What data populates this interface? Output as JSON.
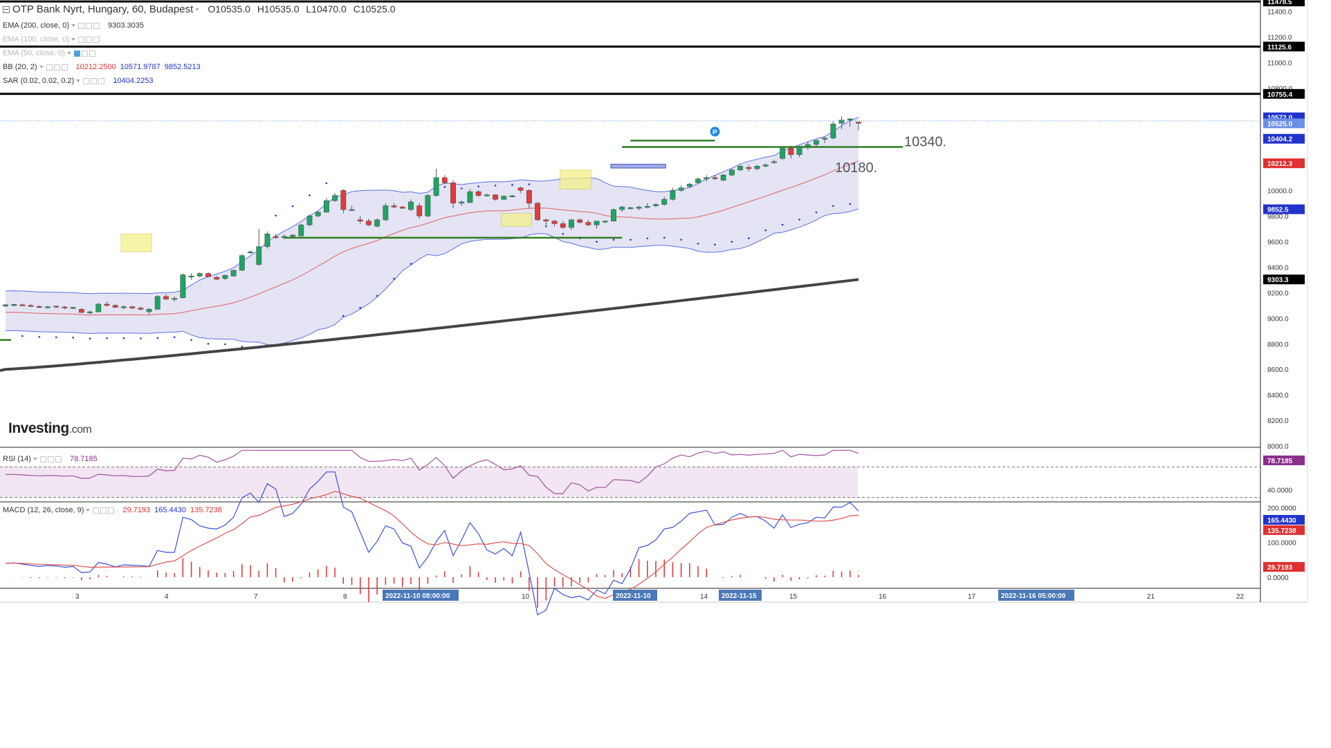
{
  "header": {
    "symbol": "OTP Bank Nyrt, Hungary, 60, Budapest",
    "ohlc": {
      "open": "O10535.0",
      "high": "H10535.0",
      "low": "L10470.0",
      "close": "C10525.0"
    }
  },
  "indicators": [
    {
      "label": "EMA (200, close, 0)",
      "values": [
        "9303.3035"
      ],
      "colors": [
        "#333333"
      ],
      "dim": false
    },
    {
      "label": "EMA (100, close, 0)",
      "values": [],
      "colors": [],
      "dim": true
    },
    {
      "label": "EMA (50, close, 0)",
      "values": [],
      "colors": [],
      "dim": true
    },
    {
      "label": "BB (20, 2)",
      "values": [
        "10212.2500",
        "10571.9787",
        "9852.5213"
      ],
      "colors": [
        "#e03030",
        "#2233cc",
        "#2233cc"
      ],
      "dim": false
    },
    {
      "label": "SAR (0.02, 0.02, 0.2)",
      "values": [
        "10404.2253"
      ],
      "colors": [
        "#2233cc"
      ],
      "dim": false
    }
  ],
  "rsi": {
    "label": "RSI (14)",
    "value": "78.7185",
    "color": "#8b2f8b"
  },
  "macd": {
    "label": "MACD (12, 26, close, 9)",
    "values": [
      "29.7193",
      "165.4430",
      "135.7238"
    ],
    "colors": [
      "#e03030",
      "#2233cc",
      "#e03030"
    ]
  },
  "logo": {
    "main": "Investing",
    "suffix": ".com"
  },
  "price_axis": {
    "ticks": [
      "11400.0",
      "11200.0",
      "11000.0",
      "10800.0",
      "10000.0",
      "9800.0",
      "9600.0",
      "9400.0",
      "9200.0",
      "9000.0",
      "8800.0",
      "8600.0",
      "8400.0",
      "8200.0",
      "8000.0"
    ],
    "tick_values": [
      11400,
      11200,
      11000,
      10800,
      10000,
      9800,
      9600,
      9400,
      9200,
      9000,
      8800,
      8600,
      8400,
      8200,
      8000
    ],
    "labels": [
      {
        "text": "11478.5",
        "value": 11478.5,
        "bg": "#000000",
        "fg": "#ffffff"
      },
      {
        "text": "11125.6",
        "value": 11125.6,
        "bg": "#000000",
        "fg": "#ffffff"
      },
      {
        "text": "10755.4",
        "value": 10755.4,
        "bg": "#000000",
        "fg": "#ffffff"
      },
      {
        "text": "10572.0",
        "value": 10572.0,
        "bg": "#2233cc",
        "fg": "#ffffff"
      },
      {
        "text": "10525.0",
        "value": 10525.0,
        "bg": "#6a8fe8",
        "fg": "#ffffff"
      },
      {
        "text": "10404.2",
        "value": 10404.2,
        "bg": "#2233cc",
        "fg": "#ffffff"
      },
      {
        "text": "10212.3",
        "value": 10212.3,
        "bg": "#e03030",
        "fg": "#ffffff"
      },
      {
        "text": "9852.5",
        "value": 9852.5,
        "bg": "#2233cc",
        "fg": "#ffffff"
      },
      {
        "text": "9303.3",
        "value": 9303.3,
        "bg": "#000000",
        "fg": "#ffffff"
      }
    ]
  },
  "rsi_axis": {
    "ticks": [
      "40.0000"
    ],
    "labels": [
      {
        "text": "78.7185",
        "bg": "#8b2f8b",
        "fg": "#ffffff"
      }
    ]
  },
  "macd_axis": {
    "ticks": [
      "200.0000",
      "100.0000",
      "0.0000"
    ],
    "labels": [
      {
        "text": "165.4430",
        "bg": "#2233cc",
        "fg": "#ffffff"
      },
      {
        "text": "135.7238",
        "bg": "#e03030",
        "fg": "#ffffff"
      },
      {
        "text": "29.7193",
        "bg": "#e03030",
        "fg": "#ffffff"
      }
    ]
  },
  "time_axis": {
    "ticks": [
      "3",
      "4",
      "7",
      "8",
      "10",
      "14",
      "15",
      "16",
      "17",
      "21",
      "22"
    ],
    "highlights": [
      "2022-11-10 08:00:00",
      "2022-11-10",
      "2022-11-15",
      "2022-11-16 05:00:00"
    ]
  },
  "annotations": {
    "level_1": "10340.",
    "level_2": "10180.",
    "marker": "P"
  },
  "colors": {
    "up": "#1fa463",
    "down": "#e03c3c",
    "bb_fill": "#e4e4f4",
    "bb_band": "#5a6fe0",
    "bb_basis": "#e06060",
    "ema200": "#444444",
    "support": "#2e7d1e",
    "highlight": "#f3f08a"
  },
  "chart_data": {
    "type": "candlestick",
    "price_range": [
      7990,
      11490
    ],
    "horizontal_lines": [
      11478.5,
      11125.6,
      10755.4
    ],
    "candles": [
      [
        9095,
        9110,
        9085,
        9105
      ],
      [
        9100,
        9115,
        9090,
        9108
      ],
      [
        9105,
        9115,
        9095,
        9100
      ],
      [
        9100,
        9110,
        9088,
        9092
      ],
      [
        9092,
        9100,
        9080,
        9085
      ],
      [
        9085,
        9095,
        9075,
        9090
      ],
      [
        9095,
        9098,
        9080,
        9088
      ],
      [
        9088,
        9095,
        9070,
        9080
      ],
      [
        9080,
        9090,
        9070,
        9085
      ],
      [
        9070,
        9080,
        9040,
        9045
      ],
      [
        9045,
        9060,
        9030,
        9050
      ],
      [
        9050,
        9120,
        9045,
        9110
      ],
      [
        9110,
        9130,
        9090,
        9100
      ],
      [
        9100,
        9110,
        9080,
        9085
      ],
      [
        9085,
        9100,
        9070,
        9090
      ],
      [
        9090,
        9095,
        9070,
        9080
      ],
      [
        9080,
        9090,
        9060,
        9070
      ],
      [
        9050,
        9080,
        9030,
        9070
      ],
      [
        9070,
        9180,
        9065,
        9170
      ],
      [
        9170,
        9190,
        9140,
        9150
      ],
      [
        9150,
        9170,
        9130,
        9155
      ],
      [
        9160,
        9350,
        9155,
        9340
      ],
      [
        9330,
        9350,
        9300,
        9330
      ],
      [
        9330,
        9360,
        9320,
        9350
      ],
      [
        9350,
        9360,
        9320,
        9325
      ],
      [
        9320,
        9330,
        9300,
        9305
      ],
      [
        9310,
        9340,
        9300,
        9335
      ],
      [
        9330,
        9380,
        9325,
        9375
      ],
      [
        9375,
        9500,
        9370,
        9490
      ],
      [
        9520,
        9530,
        9500,
        9520
      ],
      [
        9420,
        9700,
        9410,
        9560
      ],
      [
        9560,
        9680,
        9545,
        9660
      ],
      [
        9640,
        9660,
        9620,
        9630
      ],
      [
        9630,
        9655,
        9620,
        9640
      ],
      [
        9640,
        9660,
        9630,
        9650
      ],
      [
        9645,
        9740,
        9640,
        9730
      ],
      [
        9730,
        9810,
        9720,
        9800
      ],
      [
        9800,
        9840,
        9790,
        9830
      ],
      [
        9830,
        9940,
        9825,
        9920
      ],
      [
        9920,
        9980,
        9910,
        9960
      ],
      [
        10000,
        10010,
        9820,
        9850
      ],
      [
        9850,
        9880,
        9840,
        9850
      ],
      [
        9770,
        9800,
        9740,
        9760
      ],
      [
        9760,
        9780,
        9720,
        9730
      ],
      [
        9720,
        9780,
        9710,
        9770
      ],
      [
        9770,
        9900,
        9760,
        9880
      ],
      [
        9880,
        9900,
        9860,
        9870
      ],
      [
        9870,
        9880,
        9855,
        9860
      ],
      [
        9850,
        9930,
        9840,
        9910
      ],
      [
        9880,
        9900,
        9780,
        9800
      ],
      [
        9800,
        9970,
        9790,
        9960
      ],
      [
        9960,
        10170,
        9950,
        10100
      ],
      [
        10100,
        10120,
        10050,
        10060
      ],
      [
        10060,
        10080,
        9860,
        9900
      ],
      [
        9900,
        9920,
        9880,
        9910
      ],
      [
        9905,
        10010,
        9900,
        9990
      ],
      [
        9990,
        10000,
        9950,
        9960
      ],
      [
        9960,
        9975,
        9950,
        9965
      ],
      [
        9965,
        9970,
        9920,
        9930
      ],
      [
        9930,
        9960,
        9925,
        9955
      ],
      [
        9955,
        9965,
        9945,
        9958
      ],
      [
        10020,
        10030,
        9980,
        10000
      ],
      [
        10000,
        10010,
        9860,
        9900
      ],
      [
        9900,
        9910,
        9760,
        9770
      ],
      [
        9770,
        9780,
        9730,
        9760
      ],
      [
        9760,
        9770,
        9720,
        9740
      ],
      [
        9740,
        9760,
        9700,
        9710
      ],
      [
        9710,
        9780,
        9690,
        9770
      ],
      [
        9770,
        9780,
        9740,
        9750
      ],
      [
        9750,
        9770,
        9720,
        9730
      ],
      [
        9730,
        9760,
        9700,
        9760
      ],
      [
        9755,
        9765,
        9745,
        9760
      ],
      [
        9760,
        9860,
        9755,
        9850
      ],
      [
        9850,
        9880,
        9830,
        9870
      ],
      [
        9860,
        9870,
        9850,
        9865
      ],
      [
        9860,
        9880,
        9845,
        9870
      ],
      [
        9870,
        9900,
        9860,
        9875
      ],
      [
        9880,
        9900,
        9870,
        9890
      ],
      [
        9890,
        9950,
        9880,
        9930
      ],
      [
        9930,
        10020,
        9920,
        10000
      ],
      [
        10000,
        10040,
        9990,
        10020
      ],
      [
        10030,
        10060,
        10020,
        10050
      ],
      [
        10060,
        10100,
        10050,
        10090
      ],
      [
        10090,
        10120,
        10070,
        10100
      ],
      [
        10100,
        10120,
        10080,
        10095
      ],
      [
        10080,
        10130,
        10070,
        10120
      ],
      [
        10120,
        10170,
        10110,
        10160
      ],
      [
        10160,
        10200,
        10150,
        10190
      ],
      [
        10180,
        10200,
        10150,
        10170
      ],
      [
        10170,
        10200,
        10160,
        10190
      ],
      [
        10190,
        10210,
        10180,
        10200
      ],
      [
        10225,
        10240,
        10210,
        10225
      ],
      [
        10250,
        10340,
        10240,
        10330
      ],
      [
        10330,
        10350,
        10250,
        10280
      ],
      [
        10280,
        10350,
        10260,
        10340
      ],
      [
        10340,
        10380,
        10320,
        10360
      ],
      [
        10360,
        10400,
        10340,
        10390
      ],
      [
        10400,
        10420,
        10370,
        10410
      ],
      [
        10410,
        10540,
        10400,
        10520
      ],
      [
        10525,
        10580,
        10480,
        10550
      ],
      [
        10550,
        10565,
        10500,
        10560
      ],
      [
        10535,
        10535,
        10470,
        10525
      ]
    ]
  }
}
